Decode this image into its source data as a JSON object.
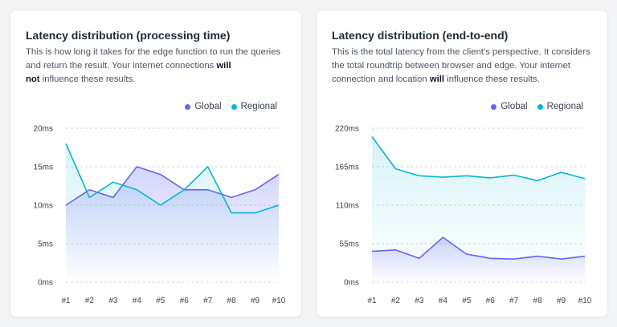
{
  "colors": {
    "global": "#6366f1",
    "regional": "#06b6d4",
    "grid": "#d1d5db"
  },
  "charts": [
    {
      "title": "Latency distribution (processing time)",
      "description": {
        "before_will": "This is how long it takes for the edge function to run the queries and return the result. Your internet connections ",
        "will_not_1": "will",
        "will_not_2": "not",
        "after": " influence these results."
      },
      "legend": {
        "global": "Global",
        "regional": "Regional"
      }
    },
    {
      "title": "Latency distribution (end-to-end)",
      "description": {
        "before_will": "This is the total latency from the client's perspective. It considers the total roundtrip between browser and edge. Your internet connection and location ",
        "will": "will",
        "after": " influence these results."
      },
      "legend": {
        "global": "Global",
        "regional": "Regional"
      }
    }
  ],
  "chart_data": [
    {
      "type": "area",
      "title": "Latency distribution (processing time)",
      "categories": [
        "#1",
        "#2",
        "#3",
        "#4",
        "#5",
        "#6",
        "#7",
        "#8",
        "#9",
        "#10"
      ],
      "y_ticks": [
        "0ms",
        "5ms",
        "10ms",
        "15ms",
        "20ms"
      ],
      "ylim": [
        0,
        20
      ],
      "grid": true,
      "legend_position": "top-right",
      "series": [
        {
          "name": "Global",
          "color": "#6366f1",
          "values": [
            10,
            12,
            11,
            15,
            14,
            12,
            12,
            11,
            12,
            14
          ]
        },
        {
          "name": "Regional",
          "color": "#06b6d4",
          "values": [
            18,
            11,
            13,
            12,
            10,
            12,
            15,
            9,
            9,
            10
          ]
        }
      ]
    },
    {
      "type": "area",
      "title": "Latency distribution (end-to-end)",
      "categories": [
        "#1",
        "#2",
        "#3",
        "#4",
        "#5",
        "#6",
        "#7",
        "#8",
        "#9",
        "#10"
      ],
      "y_ticks": [
        "0ms",
        "55ms",
        "110ms",
        "165ms",
        "220ms"
      ],
      "ylim": [
        0,
        220
      ],
      "grid": true,
      "legend_position": "top-right",
      "series": [
        {
          "name": "Global",
          "color": "#6366f1",
          "values": [
            44,
            46,
            34,
            64,
            40,
            34,
            33,
            37,
            33,
            37
          ]
        },
        {
          "name": "Regional",
          "color": "#06b6d4",
          "values": [
            208,
            162,
            152,
            150,
            152,
            149,
            153,
            145,
            157,
            148
          ]
        }
      ]
    }
  ]
}
